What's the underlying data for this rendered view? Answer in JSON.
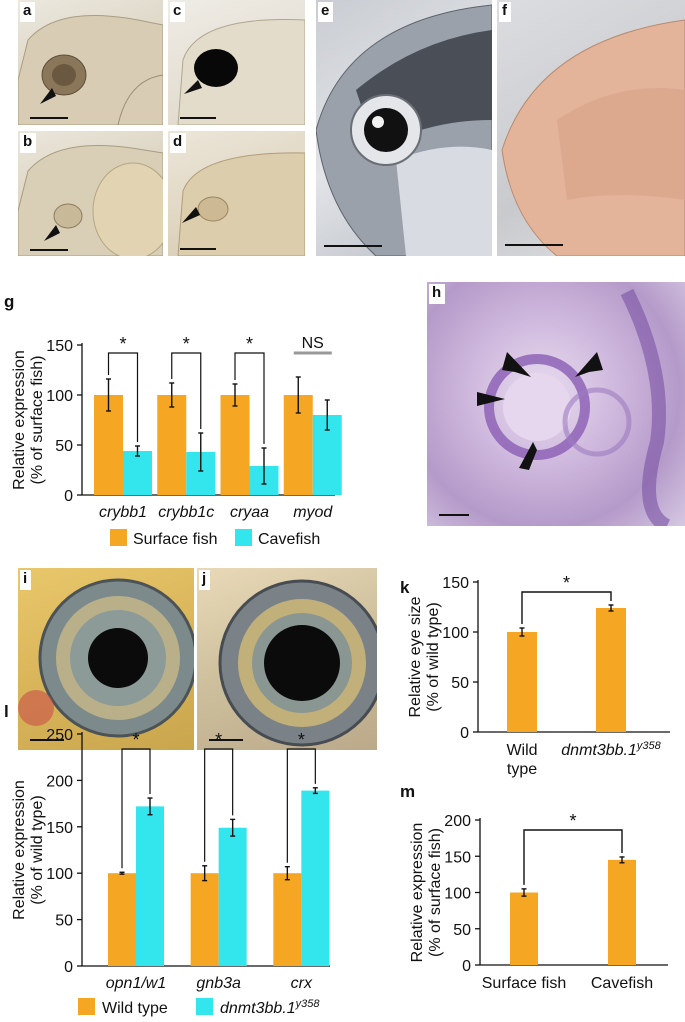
{
  "panels": {
    "a": "a",
    "b": "b",
    "c": "c",
    "d": "d",
    "e": "e",
    "f": "f",
    "g": "g",
    "h": "h",
    "i": "i",
    "j": "j",
    "k": "k",
    "l": "l",
    "m": "m"
  },
  "colors": {
    "orange": "#F5A623",
    "cyan": "#33E6EE"
  },
  "chart_data": [
    {
      "id": "g",
      "type": "bar",
      "ylabel": "Relative expression",
      "ylabel2": "(% of surface fish)",
      "ylim": [
        0,
        150
      ],
      "yticks": [
        0,
        50,
        100,
        150
      ],
      "categories": [
        "crybb1",
        "crybb1c",
        "cryaa",
        "myod"
      ],
      "series": [
        {
          "name": "Surface fish",
          "color": "#F5A623",
          "values": [
            100,
            100,
            100,
            100
          ],
          "errors": [
            16,
            12,
            11,
            18
          ]
        },
        {
          "name": "Cavefish",
          "color": "#33E6EE",
          "values": [
            44,
            43,
            29,
            80
          ],
          "errors": [
            5,
            19,
            18,
            15
          ]
        }
      ],
      "significance": [
        "*",
        "*",
        "*",
        "NS"
      ]
    },
    {
      "id": "k",
      "type": "bar",
      "ylabel": "Relative eye size",
      "ylabel2": "(% of wild type)",
      "ylim": [
        0,
        150
      ],
      "yticks": [
        0,
        50,
        100,
        150
      ],
      "categories": [
        [
          "Wild",
          "type"
        ],
        [
          "dnmt3bb.1",
          "y358"
        ]
      ],
      "values": [
        100,
        124
      ],
      "errors": [
        4,
        3
      ],
      "color": "#F5A623",
      "significance": "*"
    },
    {
      "id": "l",
      "type": "bar",
      "ylabel": "Relative expression",
      "ylabel2": "(% of wild type)",
      "ylim": [
        0,
        250
      ],
      "yticks": [
        0,
        50,
        100,
        150,
        200,
        250
      ],
      "categories": [
        "opn1/w1",
        "gnb3a",
        "crx"
      ],
      "series": [
        {
          "name": "Wild type",
          "color": "#F5A623",
          "values": [
            100,
            100,
            100
          ],
          "errors": [
            1,
            8,
            7
          ]
        },
        {
          "name": "dnmt3bb.1",
          "name_sup": "y358",
          "color": "#33E6EE",
          "values": [
            172,
            149,
            189
          ],
          "errors": [
            9,
            9,
            3
          ]
        }
      ],
      "significance": [
        "*",
        "*",
        "*"
      ]
    },
    {
      "id": "m",
      "type": "bar",
      "ylabel": "Relative expression",
      "ylabel2": "(% of surface fish)",
      "ylim": [
        0,
        200
      ],
      "yticks": [
        0,
        50,
        100,
        150,
        200
      ],
      "categories": [
        "Surface fish",
        "Cavefish"
      ],
      "values": [
        100,
        145
      ],
      "errors": [
        5,
        4
      ],
      "color": "#F5A623",
      "significance": "*"
    }
  ]
}
